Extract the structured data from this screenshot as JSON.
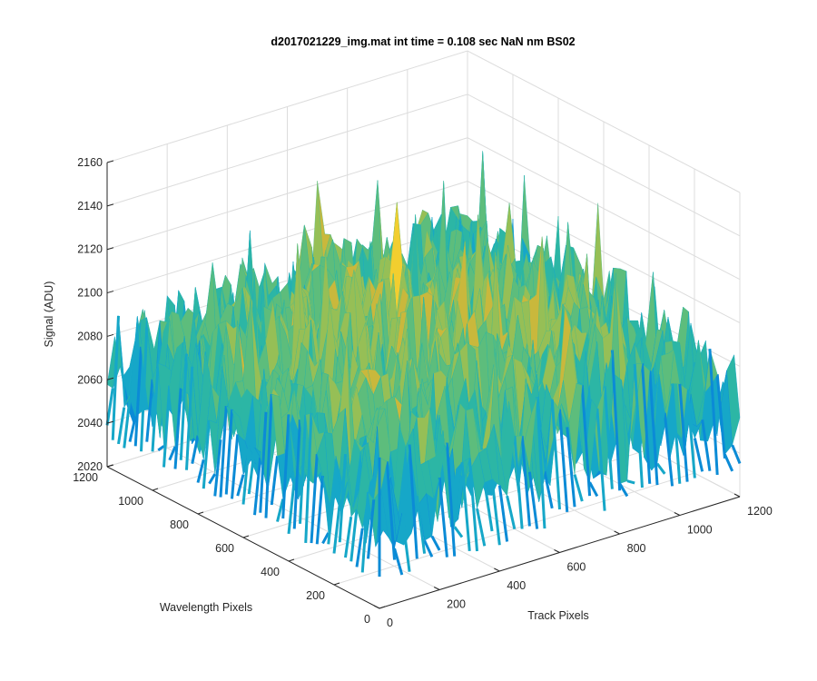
{
  "chart_data": {
    "type": "surface",
    "title": "d2017021229_img.mat int time = 0.108 sec  NaN nm BS02",
    "xlabel": "Track Pixels",
    "ylabel": "Wavelength Pixels",
    "zlabel": "Signal (ADU)",
    "xlim": [
      0,
      1200
    ],
    "ylim": [
      0,
      1200
    ],
    "zlim": [
      2020,
      2160
    ],
    "x_ticks": [
      "0",
      "200",
      "400",
      "600",
      "800",
      "1000",
      "1200"
    ],
    "y_ticks": [
      "0",
      "200",
      "400",
      "600",
      "800",
      "1000",
      "1200"
    ],
    "z_ticks": [
      "2020",
      "2040",
      "2060",
      "2080",
      "2100",
      "2120",
      "2140",
      "2160"
    ],
    "grid": true,
    "colormap": [
      "#0f5bd4",
      "#0b8bd6",
      "#16a7c8",
      "#2cb6a5",
      "#5dbd7c",
      "#96bf56",
      "#c9b83c",
      "#f2ce2f"
    ],
    "surface_approx": {
      "typical_min": 2030,
      "typical_max": 2120,
      "mean": 2075,
      "peak": 2150,
      "center_mean_offset": 25
    }
  }
}
